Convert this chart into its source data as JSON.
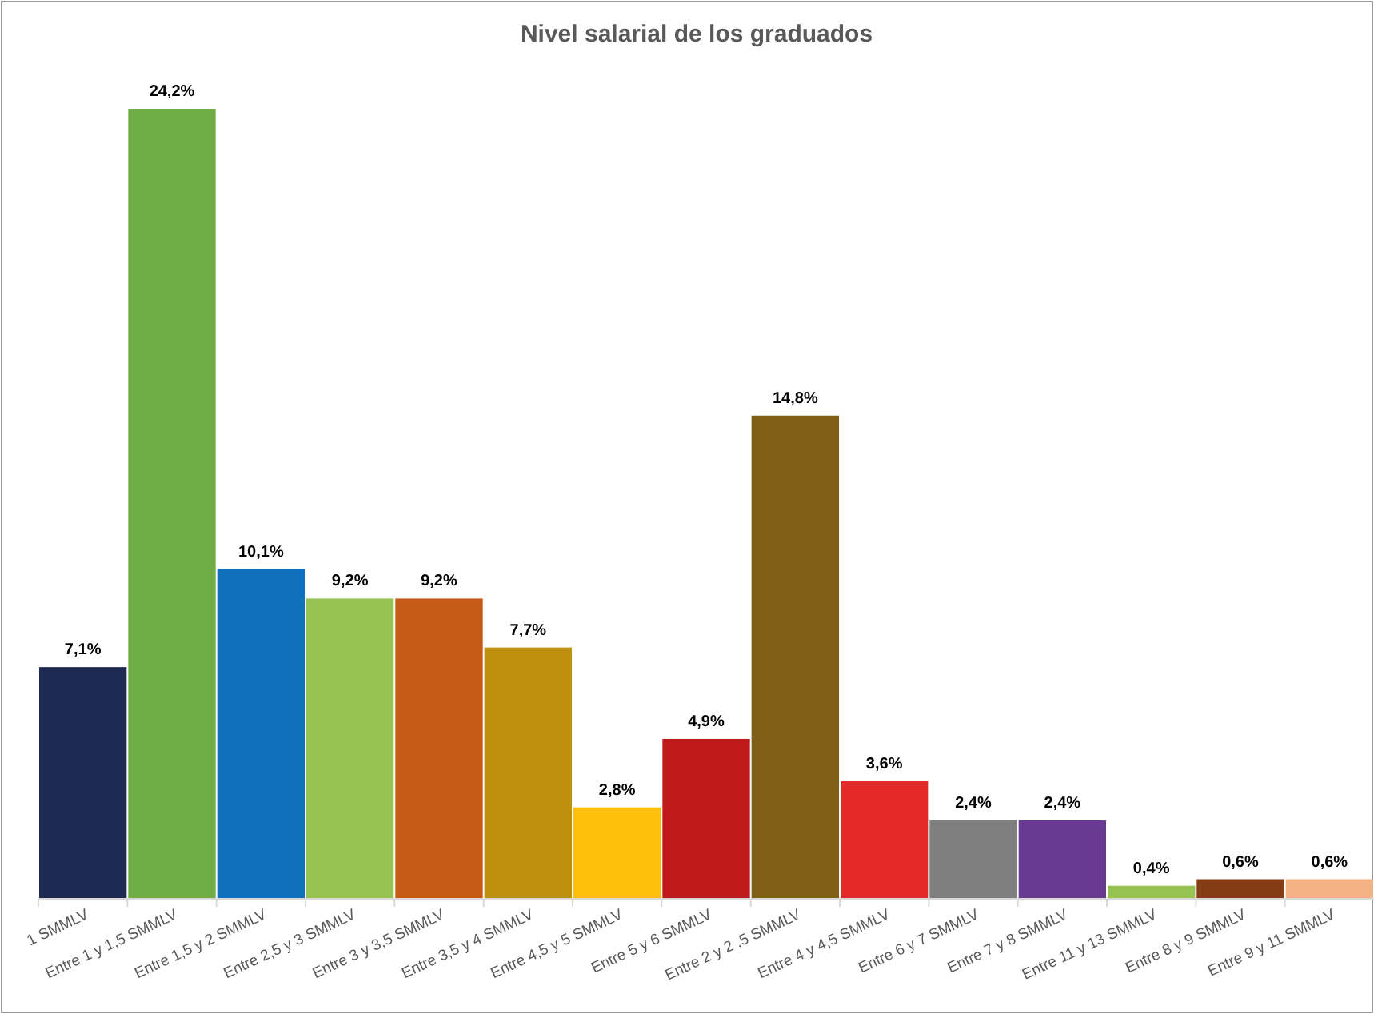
{
  "chart_data": {
    "type": "bar",
    "title": "Nivel salarial de los graduados",
    "categories": [
      "1 SMMLV",
      "Entre 1 y 1,5 SMMLV",
      "Entre 1,5 y 2 SMMLV",
      "Entre 2,5 y 3 SMMLV",
      "Entre 3 y 3,5 SMMLV",
      "Entre 3,5 y 4 SMMLV",
      "Entre 4,5 y 5 SMMLV",
      "Entre 5 y 6 SMMLV",
      "Entre 2 y 2 ,5 SMMLV",
      "Entre 4 y 4,5 SMMLV",
      "Entre 6 y 7 SMMLV",
      "Entre 7 y 8 SMMLV",
      "Entre 11 y 13 SMMLV",
      "Entre 8 y 9 SMMLV",
      "Entre 9 y 11 SMMLV"
    ],
    "values": [
      7.1,
      24.2,
      10.1,
      9.2,
      9.2,
      7.7,
      2.8,
      4.9,
      14.8,
      3.6,
      2.4,
      2.4,
      0.4,
      0.6,
      0.6
    ],
    "value_labels": [
      "7,1%",
      "24,2%",
      "10,1%",
      "9,2%",
      "9,2%",
      "7,7%",
      "2,8%",
      "4,9%",
      "14,8%",
      "3,6%",
      "2,4%",
      "2,4%",
      "0,4%",
      "0,6%",
      "0,6%"
    ],
    "colors": [
      "#1f2a52",
      "#70ad47",
      "#1170bb",
      "#97c355",
      "#c55a17",
      "#bf900e",
      "#ffc00d",
      "#c0191a",
      "#7f5f15",
      "#e52828",
      "#7f7f7f",
      "#6a3a92",
      "#97c355",
      "#843c14",
      "#f4b183"
    ]
  }
}
